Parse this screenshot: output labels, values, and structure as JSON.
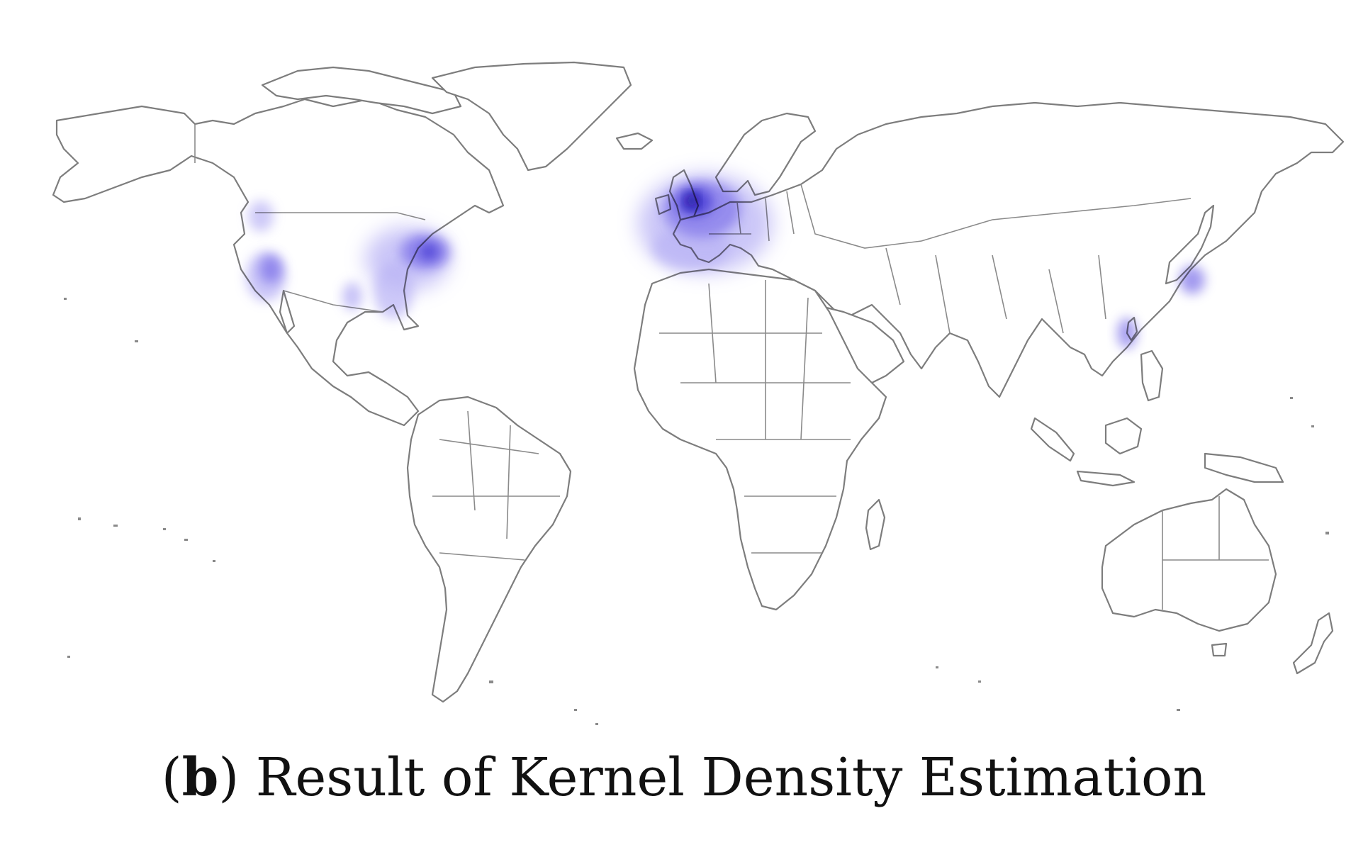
{
  "caption": {
    "open_paren": "(",
    "letter": "b",
    "close_paren": ")",
    "text": "Result of Kernel Density Estimation"
  },
  "colors": {
    "land_outline": "#7d7d7d",
    "density_light": "#b9b3f5",
    "density_mid": "#8378ea",
    "density_high": "#4b3fd6",
    "density_peak": "#14108f"
  },
  "density_hotspots": [
    {
      "region": "Western Europe",
      "intensity": 1.0
    },
    {
      "region": "Eastern United States",
      "intensity": 0.8
    },
    {
      "region": "US West Coast",
      "intensity": 0.6
    },
    {
      "region": "Texas",
      "intensity": 0.35
    },
    {
      "region": "Japan",
      "intensity": 0.45
    },
    {
      "region": "Taiwan",
      "intensity": 0.35
    }
  ]
}
